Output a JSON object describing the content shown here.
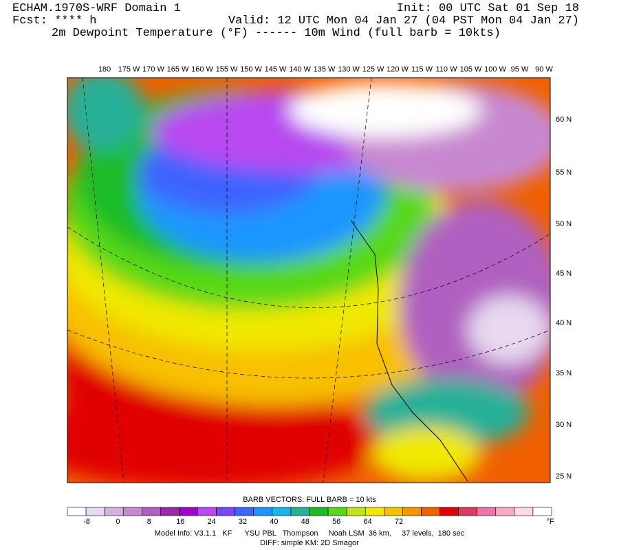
{
  "header": {
    "title": "ECHAM.1970S-WRF Domain 1",
    "init": "Init: 00 UTC Sat 01 Sep 18",
    "forecast": "Fcst: **** h",
    "valid": "Valid: 12 UTC Mon 04 Jan 27 (04 PST Mon 04 Jan 27)",
    "fields": "2m Dewpoint Temperature (°F) ------ 10m Wind (full barb = 10kts)"
  },
  "map": {
    "lon_labels": [
      "180",
      "175 W",
      "170 W",
      "165 W",
      "160 W",
      "155 W",
      "150 W",
      "145 W",
      "140 W",
      "135 W",
      "130 W",
      "125 W",
      "120 W",
      "115 W",
      "110 W",
      "105 W",
      "100 W",
      "95 W",
      "90 W"
    ],
    "lat_labels": [
      "60 N",
      "55 N",
      "50 N",
      "45 N",
      "40 N",
      "35 N",
      "30 N",
      "25 N"
    ]
  },
  "legend": {
    "title": "BARB VECTORS:  FULL BARB = 10 kts",
    "colors": [
      "#ffffff",
      "#e8d8f0",
      "#d8b0e0",
      "#c888d0",
      "#b060c0",
      "#9828a8",
      "#a000d0",
      "#b848f0",
      "#7848f8",
      "#3c64ff",
      "#1c96ff",
      "#14b8e8",
      "#28b098",
      "#1cbc28",
      "#58d818",
      "#b8e818",
      "#f0e800",
      "#f8c000",
      "#f89400",
      "#f06000",
      "#e00000",
      "#e03860",
      "#f070a8",
      "#f8a8c8",
      "#fcd8e8",
      "#ffffff"
    ],
    "labels": [
      "-8",
      "0",
      "8",
      "16",
      "24",
      "32",
      "40",
      "48",
      "56",
      "64",
      "72"
    ],
    "unit": "°F"
  },
  "footer": {
    "model": "Model Info: V3.1.1   KF      YSU PBL   Thompson     Noah LSM  36 km,     37 levels,  180 sec",
    "diff": "DIFF: simple KM: 2D Smagor"
  }
}
